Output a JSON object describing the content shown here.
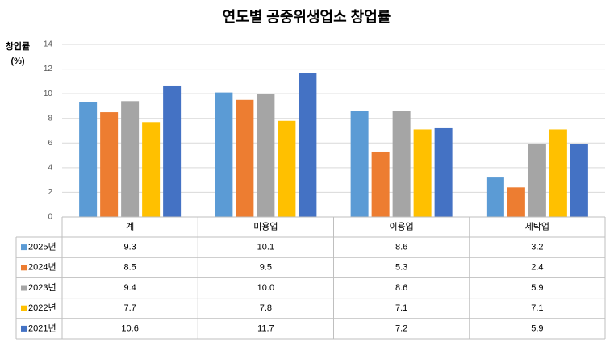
{
  "chart_data": {
    "type": "bar",
    "title": "연도별 공중위생업소 창업률",
    "y_label": [
      "창업률",
      "(%)"
    ],
    "categories": [
      "계",
      "미용업",
      "이용업",
      "세탁업"
    ],
    "ylim": [
      0,
      14
    ],
    "yticks": [
      0,
      2,
      4,
      6,
      8,
      10,
      12,
      14
    ],
    "grid": true,
    "data_table": true,
    "series": [
      {
        "name": "2025년",
        "color": "#5b9bd5",
        "values": [
          9.3,
          10.1,
          8.6,
          3.2
        ],
        "value_labels": [
          "9.3",
          "10.1",
          "8.6",
          "3.2"
        ]
      },
      {
        "name": "2024년",
        "color": "#ed7d31",
        "values": [
          8.5,
          9.5,
          5.3,
          2.4
        ],
        "value_labels": [
          "8.5",
          "9.5",
          "5.3",
          "2.4"
        ]
      },
      {
        "name": "2023년",
        "color": "#a5a5a5",
        "values": [
          9.4,
          10.0,
          8.6,
          5.9
        ],
        "value_labels": [
          "9.4",
          "10.0",
          "8.6",
          "5.9"
        ]
      },
      {
        "name": "2022년",
        "color": "#ffc000",
        "values": [
          7.7,
          7.8,
          7.1,
          7.1
        ],
        "value_labels": [
          "7.7",
          "7.8",
          "7.1",
          "7.1"
        ]
      },
      {
        "name": "2021년",
        "color": "#4472c4",
        "values": [
          10.6,
          11.7,
          7.2,
          5.9
        ],
        "value_labels": [
          "10.6",
          "11.7",
          "7.2",
          "5.9"
        ]
      }
    ]
  }
}
